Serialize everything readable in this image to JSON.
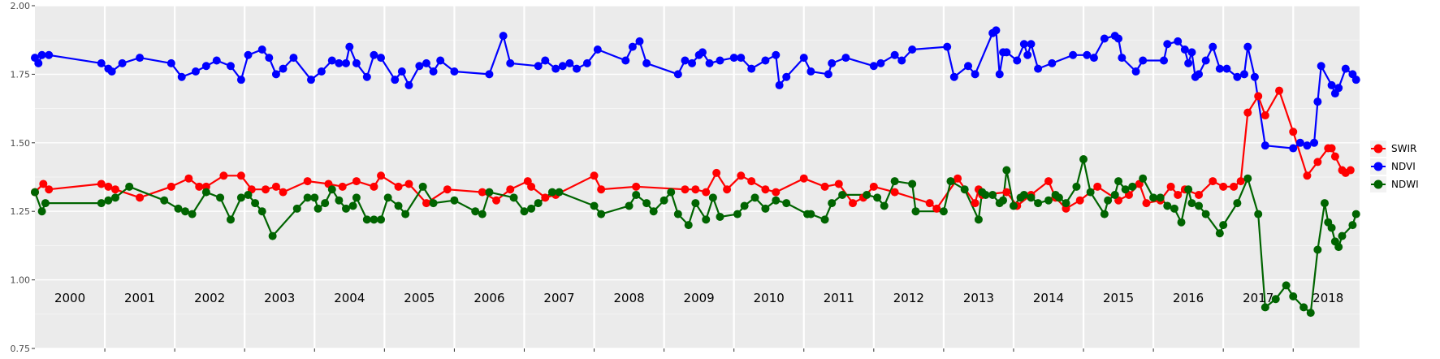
{
  "chart_data": {
    "type": "line",
    "title": "",
    "xlabel": "",
    "ylabel": "",
    "ylim": [
      0.75,
      2.0
    ],
    "xlim": [
      2000.0,
      2018.95
    ],
    "yticks": [
      {
        "value": 0.75,
        "label": "0.75"
      },
      {
        "value": 1.0,
        "label": "1.00"
      },
      {
        "value": 1.25,
        "label": "1.25"
      },
      {
        "value": 1.5,
        "label": "1.50"
      },
      {
        "value": 1.75,
        "label": "1.75"
      },
      {
        "value": 2.0,
        "label": "2.00"
      }
    ],
    "year_labels": [
      "2000",
      "2001",
      "2002",
      "2003",
      "2004",
      "2005",
      "2006",
      "2007",
      "2008",
      "2009",
      "2010",
      "2011",
      "2012",
      "2013",
      "2014",
      "2015",
      "2016",
      "2017",
      "2018"
    ],
    "grid": true,
    "background": "#ebebeb",
    "legend_position": "right",
    "series": [
      {
        "name": "SWIR",
        "color": "#ff0000",
        "x": [
          2000.0,
          2000.12,
          2000.2,
          2000.95,
          2001.05,
          2001.15,
          2001.5,
          2001.95,
          2002.2,
          2002.35,
          2002.45,
          2002.7,
          2002.95,
          2003.1,
          2003.3,
          2003.45,
          2003.55,
          2003.9,
          2004.2,
          2004.4,
          2004.6,
          2004.85,
          2004.95,
          2005.2,
          2005.35,
          2005.6,
          2005.9,
          2006.4,
          2006.6,
          2006.8,
          2007.05,
          2007.1,
          2007.3,
          2007.45,
          2008.0,
          2008.1,
          2008.6,
          2009.3,
          2009.45,
          2009.6,
          2009.75,
          2009.9,
          2010.1,
          2010.25,
          2010.45,
          2010.6,
          2011.0,
          2011.3,
          2011.5,
          2011.7,
          2011.85,
          2012.0,
          2012.3,
          2012.8,
          2012.9,
          2013.2,
          2013.45,
          2013.5,
          2013.55,
          2013.9,
          2014.05,
          2014.25,
          2014.5,
          2014.6,
          2014.75,
          2014.95,
          2015.2,
          2015.5,
          2015.65,
          2015.8,
          2015.9,
          2016.1,
          2016.25,
          2016.35,
          2016.45,
          2016.65,
          2016.85,
          2017.0,
          2017.15,
          2017.25,
          2017.35,
          2017.5,
          2017.6,
          2017.8,
          2018.0,
          2018.2,
          2018.35,
          2018.5,
          2018.55,
          2018.6,
          2018.7,
          2018.75,
          2018.82
        ],
        "y": [
          1.32,
          1.35,
          1.33,
          1.35,
          1.34,
          1.33,
          1.3,
          1.34,
          1.37,
          1.34,
          1.34,
          1.38,
          1.38,
          1.33,
          1.33,
          1.34,
          1.32,
          1.36,
          1.35,
          1.34,
          1.36,
          1.34,
          1.38,
          1.34,
          1.35,
          1.28,
          1.33,
          1.32,
          1.29,
          1.33,
          1.36,
          1.34,
          1.3,
          1.31,
          1.38,
          1.33,
          1.34,
          1.33,
          1.33,
          1.32,
          1.39,
          1.33,
          1.38,
          1.36,
          1.33,
          1.32,
          1.37,
          1.34,
          1.35,
          1.28,
          1.3,
          1.34,
          1.32,
          1.28,
          1.26,
          1.37,
          1.28,
          1.33,
          1.31,
          1.32,
          1.27,
          1.31,
          1.36,
          1.3,
          1.26,
          1.29,
          1.34,
          1.29,
          1.31,
          1.35,
          1.28,
          1.29,
          1.34,
          1.31,
          1.33,
          1.31,
          1.36,
          1.34,
          1.34,
          1.36,
          1.61,
          1.67,
          1.6,
          1.69,
          1.54,
          1.38,
          1.43,
          1.48,
          1.48,
          1.45,
          1.4,
          1.39,
          1.4
        ]
      },
      {
        "name": "NDVI",
        "color": "#0000ff",
        "x": [
          2000.0,
          2000.05,
          2000.1,
          2000.2,
          2000.95,
          2001.05,
          2001.1,
          2001.25,
          2001.5,
          2001.95,
          2002.1,
          2002.3,
          2002.45,
          2002.6,
          2002.8,
          2002.95,
          2003.05,
          2003.25,
          2003.35,
          2003.45,
          2003.55,
          2003.7,
          2003.95,
          2004.1,
          2004.25,
          2004.35,
          2004.45,
          2004.5,
          2004.6,
          2004.75,
          2004.85,
          2004.95,
          2005.15,
          2005.25,
          2005.35,
          2005.5,
          2005.6,
          2005.7,
          2005.8,
          2006.0,
          2006.5,
          2006.7,
          2006.8,
          2007.2,
          2007.3,
          2007.45,
          2007.55,
          2007.65,
          2007.75,
          2007.9,
          2008.05,
          2008.45,
          2008.55,
          2008.65,
          2008.75,
          2009.2,
          2009.3,
          2009.4,
          2009.5,
          2009.55,
          2009.65,
          2009.8,
          2010.0,
          2010.1,
          2010.25,
          2010.45,
          2010.6,
          2010.65,
          2010.75,
          2011.0,
          2011.1,
          2011.35,
          2011.4,
          2011.6,
          2012.0,
          2012.1,
          2012.3,
          2012.4,
          2012.55,
          2013.05,
          2013.15,
          2013.35,
          2013.45,
          2013.7,
          2013.75,
          2013.8,
          2013.85,
          2013.9,
          2014.05,
          2014.15,
          2014.2,
          2014.25,
          2014.35,
          2014.55,
          2014.85,
          2015.05,
          2015.15,
          2015.3,
          2015.45,
          2015.5,
          2015.55,
          2015.75,
          2015.85,
          2016.15,
          2016.2,
          2016.35,
          2016.45,
          2016.5,
          2016.55,
          2016.6,
          2016.65,
          2016.75,
          2016.85,
          2016.95,
          2017.05,
          2017.2,
          2017.3,
          2017.35,
          2017.45,
          2017.6,
          2018.0,
          2018.1,
          2018.2,
          2018.3,
          2018.35,
          2018.4,
          2018.55,
          2018.6,
          2018.65,
          2018.75,
          2018.85,
          2018.9
        ],
        "y": [
          1.81,
          1.79,
          1.82,
          1.82,
          1.79,
          1.77,
          1.76,
          1.79,
          1.81,
          1.79,
          1.74,
          1.76,
          1.78,
          1.8,
          1.78,
          1.73,
          1.82,
          1.84,
          1.81,
          1.75,
          1.77,
          1.81,
          1.73,
          1.76,
          1.8,
          1.79,
          1.79,
          1.85,
          1.79,
          1.74,
          1.82,
          1.81,
          1.73,
          1.76,
          1.71,
          1.78,
          1.79,
          1.76,
          1.8,
          1.76,
          1.75,
          1.89,
          1.79,
          1.78,
          1.8,
          1.77,
          1.78,
          1.79,
          1.77,
          1.79,
          1.84,
          1.8,
          1.85,
          1.87,
          1.79,
          1.75,
          1.8,
          1.79,
          1.82,
          1.83,
          1.79,
          1.8,
          1.81,
          1.81,
          1.77,
          1.8,
          1.82,
          1.71,
          1.74,
          1.81,
          1.76,
          1.75,
          1.79,
          1.81,
          1.78,
          1.79,
          1.82,
          1.8,
          1.84,
          1.85,
          1.74,
          1.78,
          1.75,
          1.9,
          1.91,
          1.75,
          1.83,
          1.83,
          1.8,
          1.86,
          1.82,
          1.86,
          1.77,
          1.79,
          1.82,
          1.82,
          1.81,
          1.88,
          1.89,
          1.88,
          1.81,
          1.76,
          1.8,
          1.8,
          1.86,
          1.87,
          1.84,
          1.79,
          1.83,
          1.74,
          1.75,
          1.8,
          1.85,
          1.77,
          1.77,
          1.74,
          1.75,
          1.85,
          1.74,
          1.49,
          1.48,
          1.5,
          1.49,
          1.5,
          1.65,
          1.78,
          1.71,
          1.68,
          1.7,
          1.77,
          1.75,
          1.73
        ]
      },
      {
        "name": "NDWI",
        "color": "#006400",
        "x": [
          2000.0,
          2000.1,
          2000.15,
          2000.95,
          2001.05,
          2001.15,
          2001.35,
          2001.85,
          2002.05,
          2002.15,
          2002.25,
          2002.45,
          2002.65,
          2002.8,
          2002.95,
          2003.05,
          2003.15,
          2003.25,
          2003.4,
          2003.75,
          2003.9,
          2004.0,
          2004.05,
          2004.15,
          2004.25,
          2004.35,
          2004.45,
          2004.55,
          2004.6,
          2004.75,
          2004.85,
          2004.95,
          2005.05,
          2005.2,
          2005.3,
          2005.55,
          2005.7,
          2006.0,
          2006.3,
          2006.4,
          2006.5,
          2006.85,
          2007.0,
          2007.1,
          2007.2,
          2007.4,
          2007.5,
          2008.0,
          2008.1,
          2008.5,
          2008.6,
          2008.75,
          2008.85,
          2009.0,
          2009.1,
          2009.2,
          2009.35,
          2009.45,
          2009.6,
          2009.7,
          2009.8,
          2010.05,
          2010.15,
          2010.3,
          2010.45,
          2010.6,
          2010.75,
          2011.05,
          2011.1,
          2011.3,
          2011.4,
          2011.55,
          2011.9,
          2012.05,
          2012.15,
          2012.3,
          2012.55,
          2012.6,
          2013.0,
          2013.1,
          2013.3,
          2013.5,
          2013.55,
          2013.6,
          2013.7,
          2013.8,
          2013.85,
          2013.9,
          2014.0,
          2014.1,
          2014.15,
          2014.25,
          2014.35,
          2014.5,
          2014.6,
          2014.65,
          2014.75,
          2014.9,
          2015.0,
          2015.1,
          2015.3,
          2015.35,
          2015.45,
          2015.5,
          2015.6,
          2015.7,
          2015.85,
          2016.0,
          2016.1,
          2016.2,
          2016.3,
          2016.4,
          2016.5,
          2016.55,
          2016.65,
          2016.75,
          2016.95,
          2017.0,
          2017.2,
          2017.35,
          2017.5,
          2017.6,
          2017.75,
          2017.9,
          2018.0,
          2018.15,
          2018.25,
          2018.35,
          2018.45,
          2018.5,
          2018.55,
          2018.6,
          2018.65,
          2018.7,
          2018.85,
          2018.9
        ],
        "y": [
          1.32,
          1.25,
          1.28,
          1.28,
          1.29,
          1.3,
          1.34,
          1.29,
          1.26,
          1.25,
          1.24,
          1.32,
          1.3,
          1.22,
          1.3,
          1.31,
          1.28,
          1.25,
          1.16,
          1.26,
          1.3,
          1.3,
          1.26,
          1.28,
          1.33,
          1.29,
          1.26,
          1.27,
          1.3,
          1.22,
          1.22,
          1.22,
          1.3,
          1.27,
          1.24,
          1.34,
          1.28,
          1.29,
          1.25,
          1.24,
          1.32,
          1.3,
          1.25,
          1.26,
          1.28,
          1.32,
          1.32,
          1.27,
          1.24,
          1.27,
          1.31,
          1.28,
          1.25,
          1.29,
          1.32,
          1.24,
          1.2,
          1.28,
          1.22,
          1.3,
          1.23,
          1.24,
          1.27,
          1.3,
          1.26,
          1.29,
          1.28,
          1.24,
          1.24,
          1.22,
          1.28,
          1.31,
          1.31,
          1.3,
          1.27,
          1.36,
          1.35,
          1.25,
          1.25,
          1.36,
          1.33,
          1.22,
          1.32,
          1.31,
          1.31,
          1.28,
          1.29,
          1.4,
          1.27,
          1.3,
          1.31,
          1.3,
          1.28,
          1.29,
          1.31,
          1.3,
          1.28,
          1.34,
          1.44,
          1.32,
          1.24,
          1.29,
          1.31,
          1.36,
          1.33,
          1.34,
          1.37,
          1.3,
          1.3,
          1.27,
          1.26,
          1.21,
          1.33,
          1.28,
          1.27,
          1.24,
          1.17,
          1.2,
          1.28,
          1.37,
          1.24,
          0.9,
          0.93,
          0.98,
          0.94,
          0.9,
          0.88,
          1.11,
          1.28,
          1.21,
          1.19,
          1.14,
          1.12,
          1.16,
          1.2,
          1.24
        ]
      }
    ]
  }
}
